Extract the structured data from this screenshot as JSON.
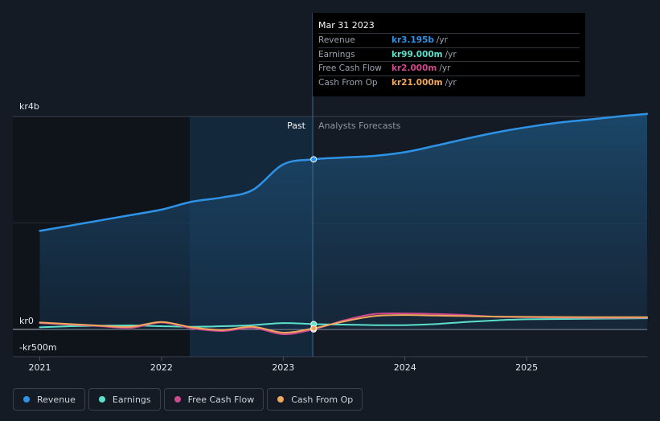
{
  "chart_data": {
    "type": "area",
    "currency": "kr",
    "y_axis": {
      "max_label": "kr4b",
      "zero_label": "kr0",
      "min_label": "-kr500m",
      "ylim": [
        -500,
        4000
      ],
      "unit": "millions"
    },
    "x_axis": {
      "tick_labels": [
        "2021",
        "2022",
        "2023",
        "2024",
        "2025"
      ],
      "tick_values": [
        2021,
        2022,
        2023,
        2024,
        2025
      ],
      "xlim": [
        2020.99,
        2025.99
      ]
    },
    "past_label": "Past",
    "forecast_label": "Analysts Forecasts",
    "divider_x": 2023.25,
    "series": [
      {
        "name": "Revenue",
        "key": "revenue",
        "color": "#2e93e6",
        "points": [
          [
            2021.0,
            1850
          ],
          [
            2021.25,
            1950
          ],
          [
            2021.5,
            2050
          ],
          [
            2021.75,
            2150
          ],
          [
            2022.0,
            2250
          ],
          [
            2022.25,
            2400
          ],
          [
            2022.5,
            2480
          ],
          [
            2022.75,
            2620
          ],
          [
            2023.0,
            3100
          ],
          [
            2023.25,
            3195
          ],
          [
            2023.5,
            3230
          ],
          [
            2023.75,
            3260
          ],
          [
            2024.0,
            3330
          ],
          [
            2024.25,
            3450
          ],
          [
            2024.5,
            3580
          ],
          [
            2024.75,
            3700
          ],
          [
            2025.0,
            3800
          ],
          [
            2025.25,
            3880
          ],
          [
            2025.5,
            3940
          ],
          [
            2025.75,
            4000
          ],
          [
            2025.99,
            4050
          ]
        ]
      },
      {
        "name": "Earnings",
        "key": "earnings",
        "color": "#5ce0cc",
        "points": [
          [
            2021.0,
            40
          ],
          [
            2021.25,
            60
          ],
          [
            2021.5,
            70
          ],
          [
            2021.75,
            75
          ],
          [
            2022.0,
            60
          ],
          [
            2022.25,
            50
          ],
          [
            2022.5,
            60
          ],
          [
            2022.75,
            80
          ],
          [
            2023.0,
            120
          ],
          [
            2023.25,
            99
          ],
          [
            2023.5,
            90
          ],
          [
            2023.75,
            80
          ],
          [
            2024.0,
            80
          ],
          [
            2024.25,
            100
          ],
          [
            2024.5,
            140
          ],
          [
            2024.75,
            170
          ],
          [
            2025.0,
            190
          ],
          [
            2025.5,
            200
          ],
          [
            2025.99,
            210
          ]
        ]
      },
      {
        "name": "Free Cash Flow",
        "key": "fcf",
        "color": "#d0488e",
        "points": [
          [
            2021.0,
            120
          ],
          [
            2021.25,
            90
          ],
          [
            2021.5,
            60
          ],
          [
            2021.75,
            30
          ],
          [
            2022.0,
            130
          ],
          [
            2022.25,
            20
          ],
          [
            2022.5,
            -30
          ],
          [
            2022.75,
            30
          ],
          [
            2023.0,
            -90
          ],
          [
            2023.25,
            2
          ],
          [
            2023.5,
            170
          ],
          [
            2023.75,
            290
          ],
          [
            2024.0,
            300
          ],
          [
            2024.25,
            290
          ],
          [
            2024.5,
            270
          ],
          [
            2024.75,
            240
          ],
          [
            2025.0,
            230
          ],
          [
            2025.5,
            220
          ],
          [
            2025.99,
            220
          ]
        ]
      },
      {
        "name": "Cash From Op",
        "key": "cfo",
        "color": "#f0a85c",
        "points": [
          [
            2021.0,
            130
          ],
          [
            2021.25,
            100
          ],
          [
            2021.5,
            70
          ],
          [
            2021.75,
            50
          ],
          [
            2022.0,
            140
          ],
          [
            2022.25,
            40
          ],
          [
            2022.5,
            -10
          ],
          [
            2022.75,
            50
          ],
          [
            2023.0,
            -60
          ],
          [
            2023.25,
            21
          ],
          [
            2023.5,
            150
          ],
          [
            2023.75,
            250
          ],
          [
            2024.0,
            270
          ],
          [
            2024.25,
            260
          ],
          [
            2024.5,
            250
          ],
          [
            2024.75,
            240
          ],
          [
            2025.0,
            235
          ],
          [
            2025.5,
            230
          ],
          [
            2025.99,
            230
          ]
        ]
      }
    ],
    "tooltip": {
      "date": "Mar 31 2023",
      "rows": [
        {
          "label": "Revenue",
          "value": "kr3.195b",
          "unit": "/yr",
          "color": "#2e93e6"
        },
        {
          "label": "Earnings",
          "value": "kr99.000m",
          "unit": "/yr",
          "color": "#5ce0cc"
        },
        {
          "label": "Free Cash Flow",
          "value": "kr2.000m",
          "unit": "/yr",
          "color": "#d0488e"
        },
        {
          "label": "Cash From Op",
          "value": "kr21.000m",
          "unit": "/yr",
          "color": "#f0a85c"
        }
      ]
    },
    "legend": [
      {
        "label": "Revenue",
        "color": "#2e93e6"
      },
      {
        "label": "Earnings",
        "color": "#5ce0cc"
      },
      {
        "label": "Free Cash Flow",
        "color": "#d0488e"
      },
      {
        "label": "Cash From Op",
        "color": "#f0a85c"
      }
    ]
  }
}
